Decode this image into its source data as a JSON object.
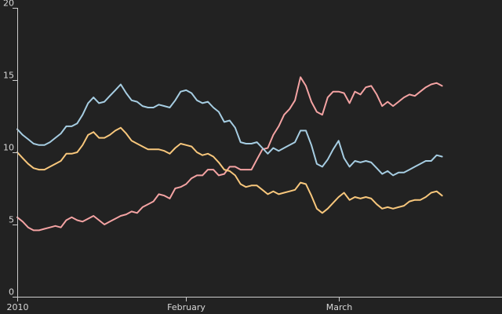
{
  "chart_data": {
    "type": "line",
    "title": "",
    "xlabel": "",
    "ylabel": "",
    "x_range": [
      "2010-01-01",
      "2010-03-31"
    ],
    "ylim": [
      0,
      20
    ],
    "grid": false,
    "legend": "none",
    "x_ticks": [
      {
        "date": "2010-01-01",
        "label": "2010"
      },
      {
        "date": "2010-02-01",
        "label": "February"
      },
      {
        "date": "2010-03-01",
        "label": "March"
      }
    ],
    "y_ticks": [
      {
        "value": 0,
        "label": "0"
      },
      {
        "value": 5,
        "label": "5"
      },
      {
        "value": 10,
        "label": "10"
      },
      {
        "value": 15,
        "label": "15"
      },
      {
        "value": 20,
        "label": "20"
      }
    ],
    "series": [
      {
        "color": "#f4a3a3",
        "points": [
          [
            "2010-01-01",
            5.5
          ],
          [
            "2010-01-02",
            5.2
          ],
          [
            "2010-01-03",
            4.8
          ],
          [
            "2010-01-04",
            4.6
          ],
          [
            "2010-01-05",
            4.6
          ],
          [
            "2010-01-06",
            4.7
          ],
          [
            "2010-01-07",
            4.8
          ],
          [
            "2010-01-08",
            4.9
          ],
          [
            "2010-01-09",
            4.8
          ],
          [
            "2010-01-10",
            5.3
          ],
          [
            "2010-01-11",
            5.5
          ],
          [
            "2010-01-12",
            5.3
          ],
          [
            "2010-01-13",
            5.2
          ],
          [
            "2010-01-14",
            5.4
          ],
          [
            "2010-01-15",
            5.6
          ],
          [
            "2010-01-16",
            5.3
          ],
          [
            "2010-01-17",
            5.0
          ],
          [
            "2010-01-18",
            5.2
          ],
          [
            "2010-01-19",
            5.4
          ],
          [
            "2010-01-20",
            5.6
          ],
          [
            "2010-01-21",
            5.7
          ],
          [
            "2010-01-22",
            5.9
          ],
          [
            "2010-01-23",
            5.8
          ],
          [
            "2010-01-24",
            6.2
          ],
          [
            "2010-01-25",
            6.4
          ],
          [
            "2010-01-26",
            6.6
          ],
          [
            "2010-01-27",
            7.1
          ],
          [
            "2010-01-28",
            7.0
          ],
          [
            "2010-01-29",
            6.8
          ],
          [
            "2010-01-30",
            7.5
          ],
          [
            "2010-01-31",
            7.6
          ],
          [
            "2010-02-01",
            7.8
          ],
          [
            "2010-02-02",
            8.2
          ],
          [
            "2010-02-03",
            8.4
          ],
          [
            "2010-02-04",
            8.4
          ],
          [
            "2010-02-05",
            8.8
          ],
          [
            "2010-02-06",
            8.8
          ],
          [
            "2010-02-07",
            8.4
          ],
          [
            "2010-02-08",
            8.5
          ],
          [
            "2010-02-09",
            9.0
          ],
          [
            "2010-02-10",
            9.0
          ],
          [
            "2010-02-11",
            8.8
          ],
          [
            "2010-02-12",
            8.8
          ],
          [
            "2010-02-13",
            8.8
          ],
          [
            "2010-02-14",
            9.5
          ],
          [
            "2010-02-15",
            10.2
          ],
          [
            "2010-02-16",
            10.3
          ],
          [
            "2010-02-17",
            11.2
          ],
          [
            "2010-02-18",
            11.8
          ],
          [
            "2010-02-19",
            12.6
          ],
          [
            "2010-02-20",
            13.0
          ],
          [
            "2010-02-21",
            13.6
          ],
          [
            "2010-02-22",
            15.2
          ],
          [
            "2010-02-23",
            14.6
          ],
          [
            "2010-02-24",
            13.5
          ],
          [
            "2010-02-25",
            12.8
          ],
          [
            "2010-02-26",
            12.6
          ],
          [
            "2010-02-27",
            13.8
          ],
          [
            "2010-02-28",
            14.2
          ],
          [
            "2010-03-01",
            14.2
          ],
          [
            "2010-03-02",
            14.1
          ],
          [
            "2010-03-03",
            13.4
          ],
          [
            "2010-03-04",
            14.2
          ],
          [
            "2010-03-05",
            14.0
          ],
          [
            "2010-03-06",
            14.5
          ],
          [
            "2010-03-07",
            14.6
          ],
          [
            "2010-03-08",
            14.0
          ],
          [
            "2010-03-09",
            13.2
          ],
          [
            "2010-03-10",
            13.5
          ],
          [
            "2010-03-11",
            13.2
          ],
          [
            "2010-03-12",
            13.5
          ],
          [
            "2010-03-13",
            13.8
          ],
          [
            "2010-03-14",
            14.0
          ],
          [
            "2010-03-15",
            13.9
          ],
          [
            "2010-03-16",
            14.2
          ],
          [
            "2010-03-17",
            14.5
          ],
          [
            "2010-03-18",
            14.7
          ],
          [
            "2010-03-19",
            14.8
          ],
          [
            "2010-03-20",
            14.6
          ]
        ]
      },
      {
        "color": "#a6cde2",
        "points": [
          [
            "2010-01-01",
            11.6
          ],
          [
            "2010-01-02",
            11.2
          ],
          [
            "2010-01-03",
            10.9
          ],
          [
            "2010-01-04",
            10.6
          ],
          [
            "2010-01-05",
            10.5
          ],
          [
            "2010-01-06",
            10.5
          ],
          [
            "2010-01-07",
            10.7
          ],
          [
            "2010-01-08",
            11.0
          ],
          [
            "2010-01-09",
            11.3
          ],
          [
            "2010-01-10",
            11.8
          ],
          [
            "2010-01-11",
            11.8
          ],
          [
            "2010-01-12",
            12.0
          ],
          [
            "2010-01-13",
            12.6
          ],
          [
            "2010-01-14",
            13.4
          ],
          [
            "2010-01-15",
            13.8
          ],
          [
            "2010-01-16",
            13.4
          ],
          [
            "2010-01-17",
            13.5
          ],
          [
            "2010-01-18",
            13.9
          ],
          [
            "2010-01-19",
            14.3
          ],
          [
            "2010-01-20",
            14.7
          ],
          [
            "2010-01-21",
            14.1
          ],
          [
            "2010-01-22",
            13.6
          ],
          [
            "2010-01-23",
            13.5
          ],
          [
            "2010-01-24",
            13.2
          ],
          [
            "2010-01-25",
            13.1
          ],
          [
            "2010-01-26",
            13.1
          ],
          [
            "2010-01-27",
            13.3
          ],
          [
            "2010-01-28",
            13.2
          ],
          [
            "2010-01-29",
            13.1
          ],
          [
            "2010-01-30",
            13.6
          ],
          [
            "2010-01-31",
            14.2
          ],
          [
            "2010-02-01",
            14.3
          ],
          [
            "2010-02-02",
            14.1
          ],
          [
            "2010-02-03",
            13.6
          ],
          [
            "2010-02-04",
            13.4
          ],
          [
            "2010-02-05",
            13.5
          ],
          [
            "2010-02-06",
            13.1
          ],
          [
            "2010-02-07",
            12.8
          ],
          [
            "2010-02-08",
            12.1
          ],
          [
            "2010-02-09",
            12.2
          ],
          [
            "2010-02-10",
            11.7
          ],
          [
            "2010-02-11",
            10.7
          ],
          [
            "2010-02-12",
            10.6
          ],
          [
            "2010-02-13",
            10.6
          ],
          [
            "2010-02-14",
            10.7
          ],
          [
            "2010-02-15",
            10.3
          ],
          [
            "2010-02-16",
            9.9
          ],
          [
            "2010-02-17",
            10.3
          ],
          [
            "2010-02-18",
            10.1
          ],
          [
            "2010-02-19",
            10.3
          ],
          [
            "2010-02-20",
            10.5
          ],
          [
            "2010-02-21",
            10.7
          ],
          [
            "2010-02-22",
            11.5
          ],
          [
            "2010-02-23",
            11.5
          ],
          [
            "2010-02-24",
            10.5
          ],
          [
            "2010-02-25",
            9.2
          ],
          [
            "2010-02-26",
            9.0
          ],
          [
            "2010-02-27",
            9.5
          ],
          [
            "2010-02-28",
            10.2
          ],
          [
            "2010-03-01",
            10.8
          ],
          [
            "2010-03-02",
            9.6
          ],
          [
            "2010-03-03",
            9.0
          ],
          [
            "2010-03-04",
            9.4
          ],
          [
            "2010-03-05",
            9.3
          ],
          [
            "2010-03-06",
            9.4
          ],
          [
            "2010-03-07",
            9.3
          ],
          [
            "2010-03-08",
            8.9
          ],
          [
            "2010-03-09",
            8.5
          ],
          [
            "2010-03-10",
            8.7
          ],
          [
            "2010-03-11",
            8.4
          ],
          [
            "2010-03-12",
            8.6
          ],
          [
            "2010-03-13",
            8.6
          ],
          [
            "2010-03-14",
            8.8
          ],
          [
            "2010-03-15",
            9.0
          ],
          [
            "2010-03-16",
            9.2
          ],
          [
            "2010-03-17",
            9.4
          ],
          [
            "2010-03-18",
            9.4
          ],
          [
            "2010-03-19",
            9.8
          ],
          [
            "2010-03-20",
            9.7
          ]
        ]
      },
      {
        "color": "#f8c77c",
        "points": [
          [
            "2010-01-01",
            10.0
          ],
          [
            "2010-01-02",
            9.6
          ],
          [
            "2010-01-03",
            9.2
          ],
          [
            "2010-01-04",
            8.9
          ],
          [
            "2010-01-05",
            8.8
          ],
          [
            "2010-01-06",
            8.8
          ],
          [
            "2010-01-07",
            9.0
          ],
          [
            "2010-01-08",
            9.2
          ],
          [
            "2010-01-09",
            9.4
          ],
          [
            "2010-01-10",
            9.9
          ],
          [
            "2010-01-11",
            9.9
          ],
          [
            "2010-01-12",
            10.0
          ],
          [
            "2010-01-13",
            10.5
          ],
          [
            "2010-01-14",
            11.2
          ],
          [
            "2010-01-15",
            11.4
          ],
          [
            "2010-01-16",
            11.0
          ],
          [
            "2010-01-17",
            11.0
          ],
          [
            "2010-01-18",
            11.2
          ],
          [
            "2010-01-19",
            11.5
          ],
          [
            "2010-01-20",
            11.7
          ],
          [
            "2010-01-21",
            11.3
          ],
          [
            "2010-01-22",
            10.8
          ],
          [
            "2010-01-23",
            10.6
          ],
          [
            "2010-01-24",
            10.4
          ],
          [
            "2010-01-25",
            10.2
          ],
          [
            "2010-01-26",
            10.2
          ],
          [
            "2010-01-27",
            10.2
          ],
          [
            "2010-01-28",
            10.1
          ],
          [
            "2010-01-29",
            9.9
          ],
          [
            "2010-01-30",
            10.3
          ],
          [
            "2010-01-31",
            10.6
          ],
          [
            "2010-02-01",
            10.5
          ],
          [
            "2010-02-02",
            10.4
          ],
          [
            "2010-02-03",
            10.0
          ],
          [
            "2010-02-04",
            9.8
          ],
          [
            "2010-02-05",
            9.9
          ],
          [
            "2010-02-06",
            9.7
          ],
          [
            "2010-02-07",
            9.3
          ],
          [
            "2010-02-08",
            8.8
          ],
          [
            "2010-02-09",
            8.7
          ],
          [
            "2010-02-10",
            8.4
          ],
          [
            "2010-02-11",
            7.8
          ],
          [
            "2010-02-12",
            7.6
          ],
          [
            "2010-02-13",
            7.7
          ],
          [
            "2010-02-14",
            7.7
          ],
          [
            "2010-02-15",
            7.4
          ],
          [
            "2010-02-16",
            7.1
          ],
          [
            "2010-02-17",
            7.3
          ],
          [
            "2010-02-18",
            7.1
          ],
          [
            "2010-02-19",
            7.2
          ],
          [
            "2010-02-20",
            7.3
          ],
          [
            "2010-02-21",
            7.4
          ],
          [
            "2010-02-22",
            7.9
          ],
          [
            "2010-02-23",
            7.8
          ],
          [
            "2010-02-24",
            7.0
          ],
          [
            "2010-02-25",
            6.1
          ],
          [
            "2010-02-26",
            5.8
          ],
          [
            "2010-02-27",
            6.1
          ],
          [
            "2010-02-28",
            6.5
          ],
          [
            "2010-03-01",
            6.9
          ],
          [
            "2010-03-02",
            7.2
          ],
          [
            "2010-03-03",
            6.7
          ],
          [
            "2010-03-04",
            6.9
          ],
          [
            "2010-03-05",
            6.8
          ],
          [
            "2010-03-06",
            6.9
          ],
          [
            "2010-03-07",
            6.8
          ],
          [
            "2010-03-08",
            6.4
          ],
          [
            "2010-03-09",
            6.1
          ],
          [
            "2010-03-10",
            6.2
          ],
          [
            "2010-03-11",
            6.1
          ],
          [
            "2010-03-12",
            6.2
          ],
          [
            "2010-03-13",
            6.3
          ],
          [
            "2010-03-14",
            6.6
          ],
          [
            "2010-03-15",
            6.7
          ],
          [
            "2010-03-16",
            6.7
          ],
          [
            "2010-03-17",
            6.9
          ],
          [
            "2010-03-18",
            7.2
          ],
          [
            "2010-03-19",
            7.3
          ],
          [
            "2010-03-20",
            7.0
          ]
        ]
      }
    ]
  }
}
